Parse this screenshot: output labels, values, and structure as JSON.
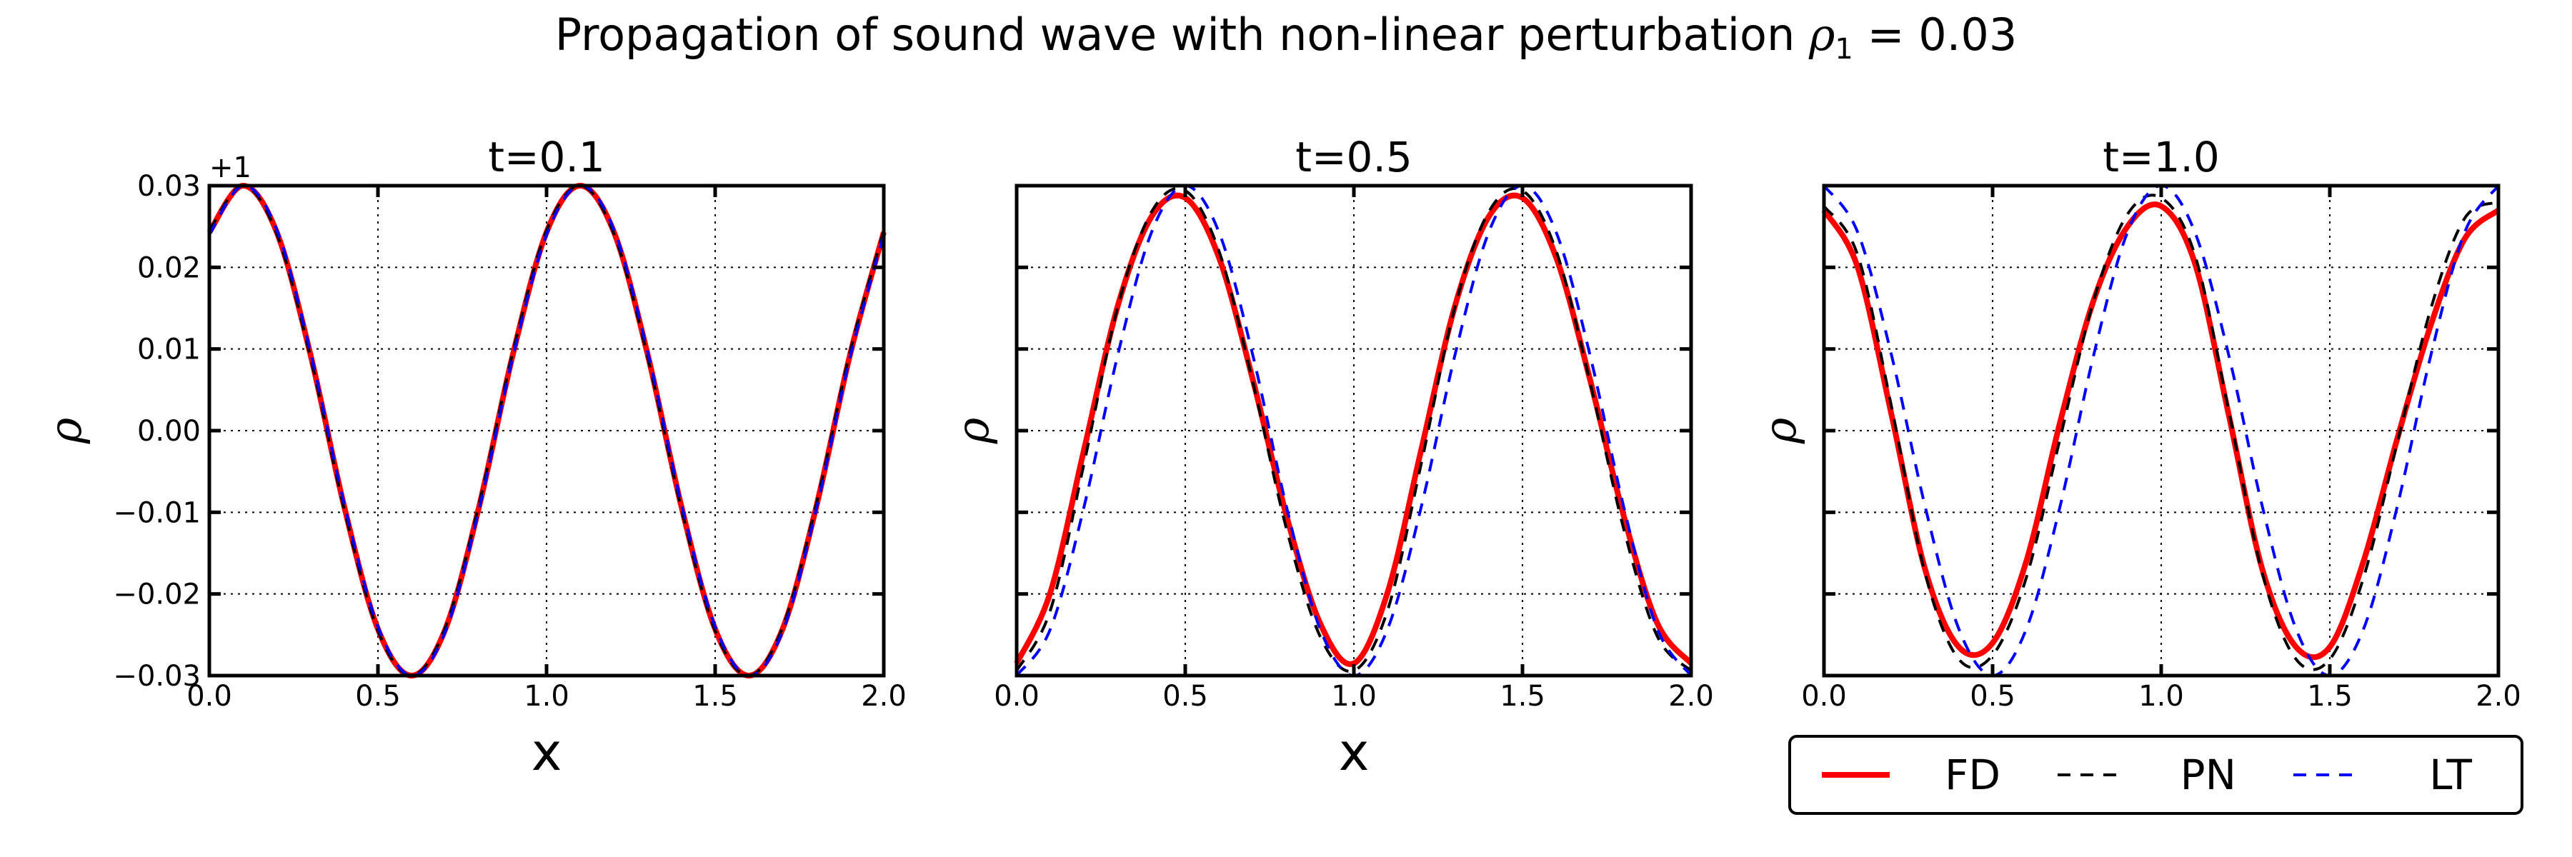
{
  "figure": {
    "title_prefix": "Propagation of sound wave with non-linear perturbation ",
    "title_symbol": "ρ",
    "title_subscript": "1",
    "title_suffix": " = 0.03"
  },
  "colors": {
    "FD": "#ff0000",
    "PN": "#000000",
    "LT": "#0000ff",
    "grid": "#000000"
  },
  "legend": {
    "placement": "below-right",
    "entries": [
      {
        "key": "FD",
        "label": "FD",
        "style": "solid"
      },
      {
        "key": "PN",
        "label": "PN",
        "style": "dashed"
      },
      {
        "key": "LT",
        "label": "LT",
        "style": "dashed"
      }
    ]
  },
  "chart_data": [
    {
      "type": "line",
      "title": "t=0.1",
      "xlabel": "x",
      "ylabel": "ρ",
      "offset_text": "+1",
      "xlim": [
        0.0,
        2.0
      ],
      "ylim": [
        -0.03,
        0.03
      ],
      "grid": true,
      "x_ticks": [
        0.0,
        0.5,
        1.0,
        1.5,
        2.0
      ],
      "x_tick_labels": [
        "0.0",
        "0.5",
        "1.0",
        "1.5",
        "2.0"
      ],
      "y_ticks": [
        -0.03,
        -0.02,
        -0.01,
        0.0,
        0.01,
        0.02,
        0.03
      ],
      "y_tick_labels": [
        "−0.03",
        "−0.02",
        "−0.01",
        "0.00",
        "0.01",
        "0.02",
        "0.03"
      ],
      "series": [
        {
          "name": "FD",
          "x": [
            0.0,
            0.1,
            0.2,
            0.3,
            0.4,
            0.5,
            0.6,
            0.7,
            0.8,
            0.9,
            1.0,
            1.1,
            1.2,
            1.3,
            1.4,
            1.5,
            1.6,
            1.7,
            1.8,
            1.9,
            2.0
          ],
          "y": [
            0.0243,
            0.03,
            0.0243,
            0.0093,
            -0.0093,
            -0.0243,
            -0.03,
            -0.0243,
            -0.0093,
            0.0093,
            0.0243,
            0.03,
            0.0243,
            0.0093,
            -0.0093,
            -0.0243,
            -0.03,
            -0.0243,
            -0.0093,
            0.0093,
            0.0243
          ]
        },
        {
          "name": "PN",
          "x": [
            0.0,
            0.1,
            0.2,
            0.3,
            0.4,
            0.5,
            0.6,
            0.7,
            0.8,
            0.9,
            1.0,
            1.1,
            1.2,
            1.3,
            1.4,
            1.5,
            1.6,
            1.7,
            1.8,
            1.9,
            2.0
          ],
          "y": [
            0.0245,
            0.03,
            0.0241,
            0.009,
            -0.0096,
            -0.0245,
            -0.03,
            -0.0241,
            -0.009,
            0.0096,
            0.0245,
            0.03,
            0.0241,
            0.009,
            -0.0096,
            -0.0245,
            -0.03,
            -0.0241,
            -0.009,
            0.0096,
            0.0245
          ]
        },
        {
          "name": "LT",
          "x": [
            0.0,
            0.1,
            0.2,
            0.3,
            0.4,
            0.5,
            0.6,
            0.7,
            0.8,
            0.9,
            1.0,
            1.1,
            1.2,
            1.3,
            1.4,
            1.5,
            1.6,
            1.7,
            1.8,
            1.9,
            2.0
          ],
          "y": [
            0.024,
            0.03,
            0.0246,
            0.0096,
            -0.009,
            -0.024,
            -0.03,
            -0.0246,
            -0.0096,
            0.009,
            0.024,
            0.03,
            0.0246,
            0.0096,
            -0.009,
            -0.024,
            -0.03,
            -0.0246,
            -0.0096,
            0.009,
            0.024
          ]
        }
      ]
    },
    {
      "type": "line",
      "title": "t=0.5",
      "xlabel": "x",
      "ylabel": "ρ",
      "xlim": [
        0.0,
        2.0
      ],
      "ylim": [
        -0.03,
        0.03
      ],
      "grid": true,
      "x_ticks": [
        0.0,
        0.5,
        1.0,
        1.5,
        2.0
      ],
      "x_tick_labels": [
        "0.0",
        "0.5",
        "1.0",
        "1.5",
        "2.0"
      ],
      "y_ticks": [
        -0.03,
        -0.02,
        -0.01,
        0.0,
        0.01,
        0.02,
        0.03
      ],
      "y_tick_labels": [],
      "series": [
        {
          "name": "FD",
          "x": [
            0.0,
            0.1,
            0.2,
            0.3,
            0.4,
            0.5,
            0.6,
            0.7,
            0.8,
            0.9,
            1.0,
            1.1,
            1.2,
            1.3,
            1.4,
            1.5,
            1.6,
            1.7,
            1.8,
            1.9,
            2.0
          ],
          "y": [
            -0.0285,
            -0.0198,
            -0.0023,
            0.0153,
            0.0262,
            0.0285,
            0.0212,
            0.0063,
            -0.0104,
            -0.0236,
            -0.0285,
            -0.0198,
            -0.0023,
            0.0153,
            0.0262,
            0.0285,
            0.0212,
            0.0063,
            -0.0104,
            -0.0236,
            -0.0285
          ]
        },
        {
          "name": "PN",
          "x": [
            0.0,
            0.1,
            0.2,
            0.3,
            0.4,
            0.5,
            0.6,
            0.7,
            0.8,
            0.9,
            1.0,
            1.1,
            1.2,
            1.3,
            1.4,
            1.5,
            1.6,
            1.7,
            1.8,
            1.9,
            2.0
          ],
          "y": [
            -0.0294,
            -0.022,
            -0.004,
            0.0152,
            0.0268,
            0.0294,
            0.022,
            0.006,
            -0.012,
            -0.0252,
            -0.0294,
            -0.022,
            -0.004,
            0.0152,
            0.0268,
            0.0294,
            0.022,
            0.006,
            -0.012,
            -0.0252,
            -0.0294
          ]
        },
        {
          "name": "LT",
          "x": [
            0.0,
            0.1,
            0.2,
            0.3,
            0.4,
            0.5,
            0.6,
            0.7,
            0.8,
            0.9,
            1.0,
            1.1,
            1.2,
            1.3,
            1.4,
            1.5,
            1.6,
            1.7,
            1.8,
            1.9,
            2.0
          ],
          "y": [
            -0.03,
            -0.0243,
            -0.0093,
            0.0093,
            0.0243,
            0.03,
            0.0243,
            0.0093,
            -0.0093,
            -0.0243,
            -0.03,
            -0.0243,
            -0.0093,
            0.0093,
            0.0243,
            0.03,
            0.0243,
            0.0093,
            -0.0093,
            -0.0243,
            -0.03
          ]
        }
      ]
    },
    {
      "type": "line",
      "title": "t=1.0",
      "xlabel": "",
      "ylabel": "ρ",
      "xlim": [
        0.0,
        2.0
      ],
      "ylim": [
        -0.03,
        0.03
      ],
      "grid": true,
      "x_ticks": [
        0.0,
        0.5,
        1.0,
        1.5,
        2.0
      ],
      "x_tick_labels": [
        "0.0",
        "0.5",
        "1.0",
        "1.5",
        "2.0"
      ],
      "y_ticks": [
        -0.03,
        -0.02,
        -0.01,
        0.0,
        0.01,
        0.02,
        0.03
      ],
      "y_tick_labels": [],
      "series": [
        {
          "name": "FD",
          "x": [
            0.0,
            0.1,
            0.2,
            0.3,
            0.4,
            0.5,
            0.6,
            0.7,
            0.8,
            0.9,
            1.0,
            1.1,
            1.2,
            1.3,
            1.4,
            1.5,
            1.6,
            1.7,
            1.8,
            1.9,
            2.0
          ],
          "y": [
            0.027,
            0.02,
            0.002,
            -0.017,
            -0.0265,
            -0.026,
            -0.016,
            0.001,
            0.016,
            0.025,
            0.0275,
            0.0205,
            0.002,
            -0.017,
            -0.0265,
            -0.0265,
            -0.016,
            -0.001,
            0.013,
            0.0235,
            0.027
          ]
        },
        {
          "name": "PN",
          "x": [
            0.0,
            0.1,
            0.2,
            0.3,
            0.4,
            0.5,
            0.6,
            0.7,
            0.8,
            0.9,
            1.0,
            1.1,
            1.2,
            1.3,
            1.4,
            1.5,
            1.6,
            1.7,
            1.8,
            1.9,
            2.0
          ],
          "y": [
            0.0275,
            0.0215,
            0.003,
            -0.0175,
            -0.028,
            -0.0275,
            -0.018,
            -0.001,
            0.016,
            0.0265,
            0.0285,
            0.0215,
            0.0025,
            -0.0175,
            -0.028,
            -0.028,
            -0.018,
            -0.0015,
            0.015,
            0.026,
            0.028
          ]
        },
        {
          "name": "LT",
          "x": [
            0.0,
            0.1,
            0.2,
            0.3,
            0.4,
            0.5,
            0.6,
            0.7,
            0.8,
            0.9,
            1.0,
            1.1,
            1.2,
            1.3,
            1.4,
            1.5,
            1.6,
            1.7,
            1.8,
            1.9,
            2.0
          ],
          "y": [
            0.03,
            0.0243,
            0.0093,
            -0.0093,
            -0.0243,
            -0.03,
            -0.0243,
            -0.0093,
            0.0093,
            0.0243,
            0.03,
            0.0243,
            0.0093,
            -0.0093,
            -0.0243,
            -0.03,
            -0.0243,
            -0.0093,
            0.0093,
            0.0243,
            0.03
          ]
        }
      ]
    }
  ]
}
